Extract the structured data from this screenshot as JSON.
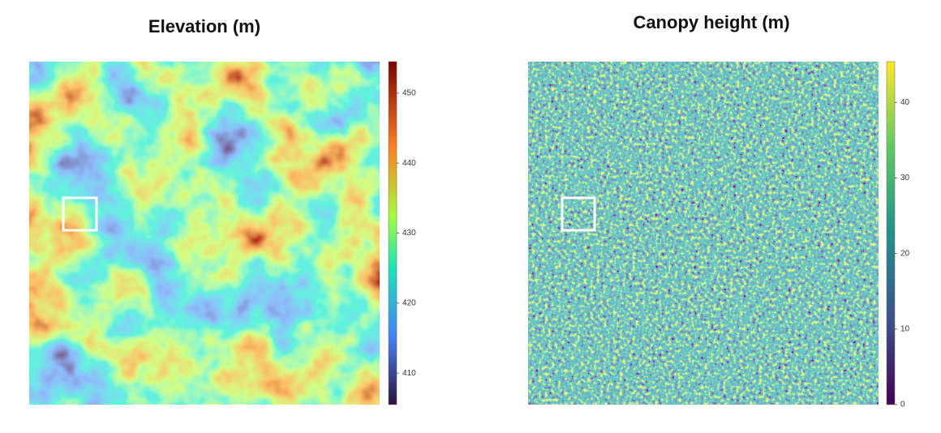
{
  "panels": [
    {
      "title": "Elevation (m)",
      "colorbar": {
        "lim": [
          405.5,
          454.5
        ],
        "ticks": [
          410,
          420,
          430,
          440,
          450
        ]
      }
    },
    {
      "title": "Canopy height (m)",
      "colorbar": {
        "lim": [
          0,
          45.4
        ],
        "ticks": [
          0,
          10,
          20,
          30,
          40
        ]
      }
    }
  ]
}
